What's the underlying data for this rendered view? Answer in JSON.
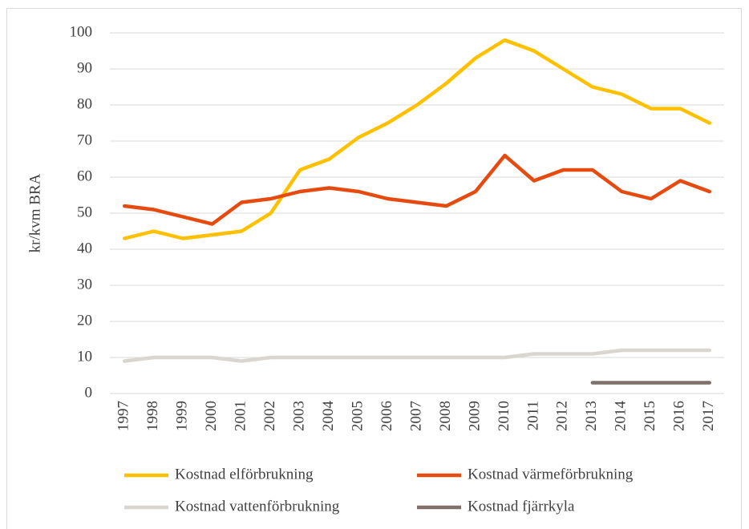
{
  "chart_data": {
    "type": "line",
    "y_label": "kr/kvm BRA",
    "categories": [
      "1997",
      "1998",
      "1999",
      "2000",
      "2001",
      "2002",
      "2003",
      "2004",
      "2005",
      "2006",
      "2007",
      "2008",
      "2009",
      "2010",
      "2011",
      "2012",
      "2013",
      "2014",
      "2015",
      "2016",
      "2017"
    ],
    "series": [
      {
        "name": "Kostnad elförbrukning",
        "color": "#ffc000",
        "values": [
          43,
          45,
          43,
          44,
          45,
          50,
          62,
          65,
          71,
          75,
          80,
          86,
          93,
          98,
          95,
          90,
          85,
          83,
          79,
          79,
          75
        ]
      },
      {
        "name": "Kostnad värmeförbrukning",
        "color": "#e64a0f",
        "values": [
          52,
          51,
          49,
          47,
          53,
          54,
          56,
          57,
          56,
          54,
          53,
          52,
          56,
          66,
          59,
          62,
          62,
          56,
          54,
          59,
          56
        ]
      },
      {
        "name": "Kostnad vattenförbrukning",
        "color": "#d9d5cf",
        "values": [
          9,
          10,
          10,
          10,
          9,
          10,
          10,
          10,
          10,
          10,
          10,
          10,
          10,
          10,
          11,
          11,
          11,
          12,
          12,
          12,
          12
        ]
      },
      {
        "name": "Kostnad fjärrkyla",
        "color": "#7f716a",
        "values": [
          null,
          null,
          null,
          null,
          null,
          null,
          null,
          null,
          null,
          null,
          null,
          null,
          null,
          null,
          null,
          null,
          3,
          3,
          3,
          3,
          3
        ]
      }
    ],
    "ylim": [
      0,
      100
    ],
    "yticks": [
      0,
      10,
      20,
      30,
      40,
      50,
      60,
      70,
      80,
      90,
      100
    ],
    "grid": true,
    "legend": "bottom"
  }
}
